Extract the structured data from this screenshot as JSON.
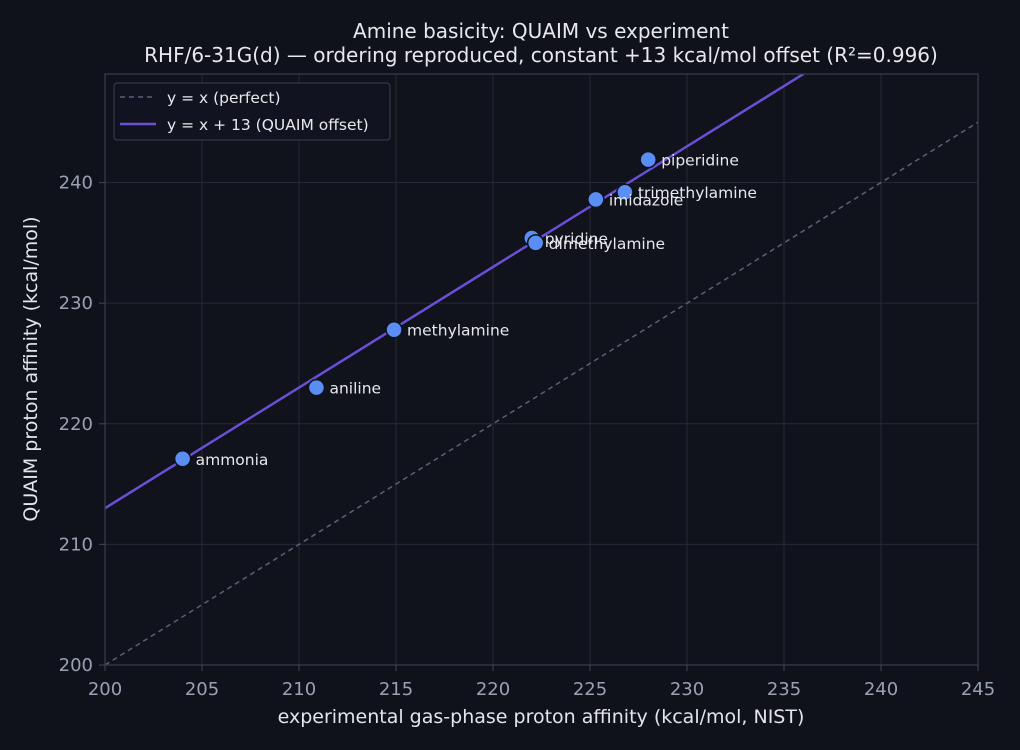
{
  "colors": {
    "background": "#0f121a",
    "plot_bg": "#10131c",
    "grid": "#262a36",
    "spine": "#3a3f4e",
    "point_fill": "#5b8ef5",
    "point_edge": "#0f121a",
    "fit_line": "#6a4fd6",
    "identity_line": "#5c5f7a"
  },
  "chart_data": {
    "type": "scatter",
    "title": "Amine basicity: QUAIM vs experiment",
    "subtitle": "RHF/6-31G(d) — ordering reproduced, constant +13 kcal/mol offset (R²=0.996)",
    "xlabel": "experimental gas-phase proton affinity (kcal/mol, NIST)",
    "ylabel": "QUAIM proton affinity (kcal/mol)",
    "xlim": [
      200,
      245
    ],
    "ylim": [
      200,
      249
    ],
    "xticks": [
      200,
      205,
      210,
      215,
      220,
      225,
      230,
      235,
      240,
      245
    ],
    "yticks": [
      200,
      210,
      220,
      230,
      240
    ],
    "grid": true,
    "legend_position": "top-left",
    "legend": [
      "y = x (perfect)",
      "y = x + 13 (QUAIM offset)"
    ],
    "identity_line": {
      "slope": 1,
      "intercept": 0
    },
    "offset_line": {
      "slope": 1,
      "intercept": 13
    },
    "points": [
      {
        "label": "ammonia",
        "x": 204.0,
        "y": 217.1
      },
      {
        "label": "aniline",
        "x": 210.9,
        "y": 223.0
      },
      {
        "label": "methylamine",
        "x": 214.9,
        "y": 227.8
      },
      {
        "label": "pyridine",
        "x": 222.0,
        "y": 235.4
      },
      {
        "label": "dimethylamine",
        "x": 222.2,
        "y": 235.0
      },
      {
        "label": "imidazole",
        "x": 225.3,
        "y": 238.6
      },
      {
        "label": "trimethylamine",
        "x": 226.8,
        "y": 239.2
      },
      {
        "label": "piperidine",
        "x": 228.0,
        "y": 241.9
      }
    ]
  }
}
